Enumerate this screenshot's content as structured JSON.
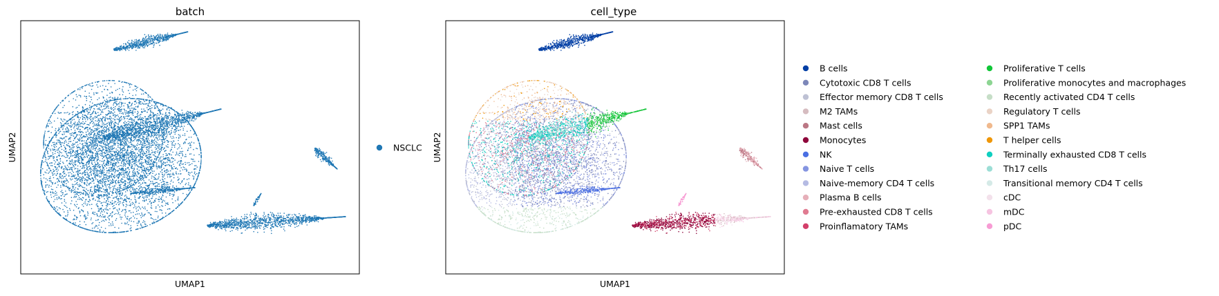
{
  "chart_data": [
    {
      "type": "scatter",
      "title": "batch",
      "xlabel": "UMAP1",
      "ylabel": "UMAP2",
      "ticks": "none",
      "legend_placement": "right",
      "series": [
        {
          "name": "NSCLC",
          "color": "#1f77b4"
        }
      ]
    },
    {
      "type": "scatter",
      "title": "cell_type",
      "xlabel": "UMAP1",
      "ylabel": "UMAP2",
      "ticks": "none",
      "legend_placement": "right, two columns",
      "series": [
        {
          "name": "B cells",
          "color": "#023fa5"
        },
        {
          "name": "Cytotoxic CD8 T cells",
          "color": "#7d87b9"
        },
        {
          "name": "Effector memory CD8 T cells",
          "color": "#bec1d4"
        },
        {
          "name": "M2 TAMs",
          "color": "#d6bcc0"
        },
        {
          "name": "Mast cells",
          "color": "#bb7784"
        },
        {
          "name": "Monocytes",
          "color": "#8e063b"
        },
        {
          "name": "NK",
          "color": "#4a6fe3"
        },
        {
          "name": "Naive T cells",
          "color": "#8595e1"
        },
        {
          "name": "Naive-memory CD4 T cells",
          "color": "#b5bbe3"
        },
        {
          "name": "Plasma B cells",
          "color": "#e6afb9"
        },
        {
          "name": "Pre-exhausted CD8 T cells",
          "color": "#e07b91"
        },
        {
          "name": "Proinflamatory TAMs",
          "color": "#d33f6a"
        },
        {
          "name": "Proliferative T cells",
          "color": "#11c638"
        },
        {
          "name": "Proliferative monocytes and macrophages",
          "color": "#8dd593"
        },
        {
          "name": "Recently activated CD4 T cells",
          "color": "#c6dec7"
        },
        {
          "name": "Regulatory T cells",
          "color": "#ead3c6"
        },
        {
          "name": "SPP1 TAMs",
          "color": "#f0b98d"
        },
        {
          "name": "T helper cells",
          "color": "#ef9708"
        },
        {
          "name": "Terminally exhausted CD8 T cells",
          "color": "#0fcfc0"
        },
        {
          "name": "Th17 cells",
          "color": "#9cded6"
        },
        {
          "name": "Transitional memory CD4 T cells",
          "color": "#d5eae7"
        },
        {
          "name": "cDC",
          "color": "#f3e1eb"
        },
        {
          "name": "mDC",
          "color": "#f6c4e1"
        },
        {
          "name": "pDC",
          "color": "#f79cd4"
        }
      ]
    }
  ]
}
